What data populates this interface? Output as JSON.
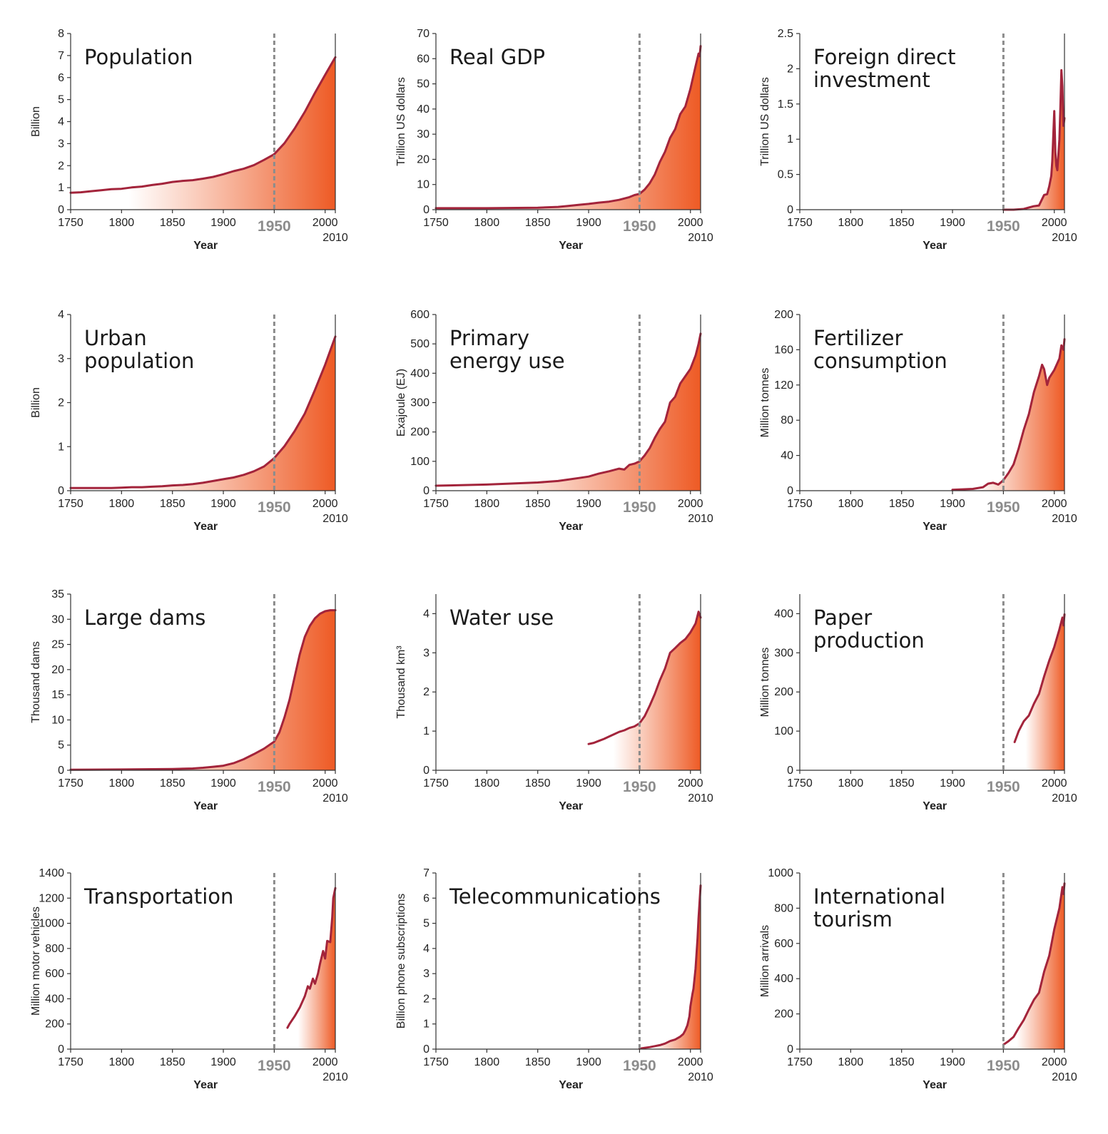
{
  "figure": {
    "x_axis": {
      "title": "Year",
      "ticks": [
        "1750",
        "1800",
        "1850",
        "1900",
        "1950",
        "2000"
      ],
      "end_label": "2010",
      "highlight_year_label": "1950"
    },
    "colors": {
      "line": "#a3243b",
      "fill_strong": "#ee5a24",
      "fill_light": "#ffffff",
      "reference_line": "#8c8c8c",
      "axis": "#333333"
    }
  },
  "chart_data": [
    {
      "type": "area",
      "title_lines": [
        "Population"
      ],
      "ylabel": "Billion",
      "ylim": [
        0,
        8
      ],
      "yticks": [
        "0",
        "1",
        "2",
        "3",
        "4",
        "5",
        "6",
        "7",
        "8"
      ],
      "xlim": [
        1750,
        2010
      ],
      "reference_x": 1950,
      "x": [
        1750,
        1760,
        1770,
        1780,
        1790,
        1800,
        1810,
        1820,
        1830,
        1840,
        1850,
        1860,
        1870,
        1880,
        1890,
        1900,
        1910,
        1920,
        1930,
        1940,
        1950,
        1960,
        1970,
        1980,
        1990,
        2000,
        2010
      ],
      "y": [
        0.77,
        0.79,
        0.84,
        0.88,
        0.93,
        0.95,
        1.01,
        1.05,
        1.12,
        1.18,
        1.26,
        1.31,
        1.34,
        1.41,
        1.49,
        1.61,
        1.75,
        1.86,
        2.02,
        2.26,
        2.52,
        3.02,
        3.68,
        4.44,
        5.31,
        6.12,
        6.92
      ]
    },
    {
      "type": "area",
      "title_lines": [
        "Real GDP"
      ],
      "ylabel": "Trillion US dollars",
      "ylim": [
        0,
        70
      ],
      "yticks": [
        "0",
        "10",
        "20",
        "30",
        "40",
        "50",
        "60",
        "70"
      ],
      "xlim": [
        1750,
        2010
      ],
      "reference_x": 1950,
      "x": [
        1750,
        1800,
        1850,
        1870,
        1880,
        1890,
        1900,
        1910,
        1920,
        1930,
        1940,
        1945,
        1950,
        1955,
        1960,
        1965,
        1970,
        1975,
        1980,
        1985,
        1990,
        1995,
        2000,
        2005,
        2008,
        2009,
        2010
      ],
      "y": [
        0.6,
        0.6,
        0.8,
        1.1,
        1.5,
        1.9,
        2.3,
        2.8,
        3.2,
        3.9,
        5.0,
        5.8,
        6.3,
        8.0,
        10.5,
        14,
        19,
        23,
        28.5,
        32,
        38,
        41,
        48,
        57,
        62,
        61,
        65
      ]
    },
    {
      "type": "area",
      "title_lines": [
        "Foreign direct",
        "investment"
      ],
      "ylabel": "Trillion US dollars",
      "ylim": [
        0,
        2.5
      ],
      "yticks": [
        "0",
        "0.5",
        "1",
        "1.5",
        "2",
        "2.5"
      ],
      "xlim": [
        1750,
        2010
      ],
      "reference_x": 1950,
      "x": [
        1950,
        1960,
        1970,
        1975,
        1980,
        1985,
        1988,
        1990,
        1993,
        1995,
        1997,
        1998,
        2000,
        2001,
        2002,
        2003,
        2005,
        2006,
        2007,
        2008,
        2009,
        2010
      ],
      "y": [
        0.0,
        0.0,
        0.01,
        0.03,
        0.05,
        0.06,
        0.15,
        0.21,
        0.22,
        0.33,
        0.48,
        0.69,
        1.4,
        0.82,
        0.62,
        0.56,
        1.0,
        1.46,
        1.98,
        1.75,
        1.19,
        1.3
      ]
    },
    {
      "type": "area",
      "title_lines": [
        "Urban",
        "population"
      ],
      "ylabel": "Billion",
      "ylim": [
        0,
        4
      ],
      "yticks": [
        "0",
        "1",
        "2",
        "3",
        "4"
      ],
      "xlim": [
        1750,
        2010
      ],
      "reference_x": 1950,
      "x": [
        1750,
        1760,
        1770,
        1780,
        1790,
        1800,
        1810,
        1820,
        1830,
        1840,
        1850,
        1860,
        1870,
        1880,
        1890,
        1900,
        1910,
        1920,
        1930,
        1940,
        1950,
        1960,
        1970,
        1980,
        1990,
        2000,
        2010
      ],
      "y": [
        0.06,
        0.06,
        0.06,
        0.06,
        0.06,
        0.07,
        0.08,
        0.08,
        0.09,
        0.1,
        0.12,
        0.13,
        0.15,
        0.18,
        0.22,
        0.26,
        0.3,
        0.36,
        0.44,
        0.55,
        0.74,
        1.01,
        1.35,
        1.75,
        2.29,
        2.86,
        3.5
      ]
    },
    {
      "type": "area",
      "title_lines": [
        "Primary",
        "energy use"
      ],
      "ylabel": "Exajoule (EJ)",
      "ylim": [
        0,
        600
      ],
      "yticks": [
        "0",
        "100",
        "200",
        "300",
        "400",
        "500",
        "600"
      ],
      "xlim": [
        1750,
        2010
      ],
      "reference_x": 1950,
      "x": [
        1750,
        1800,
        1850,
        1870,
        1880,
        1890,
        1900,
        1910,
        1920,
        1930,
        1935,
        1940,
        1945,
        1950,
        1955,
        1960,
        1965,
        1970,
        1975,
        1980,
        1985,
        1990,
        1995,
        2000,
        2005,
        2008,
        2010
      ],
      "y": [
        17,
        21,
        28,
        33,
        38,
        43,
        48,
        58,
        66,
        75,
        72,
        88,
        92,
        100,
        120,
        145,
        180,
        210,
        235,
        300,
        320,
        365,
        390,
        415,
        460,
        500,
        535
      ]
    },
    {
      "type": "area",
      "title_lines": [
        "Fertilizer",
        "consumption"
      ],
      "ylabel": "Million tonnes",
      "ylim": [
        0,
        200
      ],
      "yticks": [
        "0",
        "40",
        "80",
        "120",
        "160",
        "200"
      ],
      "xlim": [
        1750,
        2010
      ],
      "reference_x": 1950,
      "x": [
        1900,
        1910,
        1920,
        1930,
        1935,
        1940,
        1945,
        1950,
        1955,
        1960,
        1965,
        1970,
        1975,
        1980,
        1985,
        1988,
        1990,
        1993,
        1995,
        2000,
        2005,
        2007,
        2009,
        2010
      ],
      "y": [
        1,
        1.5,
        2,
        4,
        8,
        9,
        7,
        12,
        20,
        30,
        48,
        69,
        87,
        112,
        130,
        143,
        138,
        120,
        128,
        137,
        150,
        165,
        160,
        172
      ]
    },
    {
      "type": "area",
      "title_lines": [
        "Large dams"
      ],
      "ylabel": "Thousand dams",
      "ylim": [
        0,
        35
      ],
      "yticks": [
        "0",
        "5",
        "10",
        "15",
        "20",
        "25",
        "30",
        "35"
      ],
      "xlim": [
        1750,
        2010
      ],
      "reference_x": 1950,
      "x": [
        1750,
        1800,
        1850,
        1870,
        1880,
        1890,
        1900,
        1910,
        1920,
        1930,
        1940,
        1945,
        1950,
        1955,
        1960,
        1965,
        1970,
        1975,
        1980,
        1985,
        1990,
        1995,
        2000,
        2005,
        2010
      ],
      "y": [
        0.1,
        0.15,
        0.25,
        0.35,
        0.5,
        0.7,
        0.9,
        1.4,
        2.2,
        3.2,
        4.3,
        5.0,
        5.7,
        7.5,
        10.5,
        14,
        18.5,
        23,
        26.5,
        28.7,
        30.2,
        31.1,
        31.6,
        31.8,
        31.8
      ]
    },
    {
      "type": "area",
      "title_lines": [
        "Water use"
      ],
      "ylabel": "Thousand km³",
      "ylim": [
        0,
        4.5
      ],
      "yticks": [
        "0",
        "1",
        "2",
        "3",
        "4"
      ],
      "xlim": [
        1750,
        2010
      ],
      "reference_x": 1950,
      "x": [
        1900,
        1905,
        1910,
        1915,
        1920,
        1925,
        1930,
        1935,
        1940,
        1945,
        1950,
        1955,
        1960,
        1965,
        1970,
        1975,
        1980,
        1985,
        1990,
        1995,
        2000,
        2005,
        2008,
        2010
      ],
      "y": [
        0.67,
        0.7,
        0.75,
        0.8,
        0.86,
        0.92,
        0.98,
        1.02,
        1.08,
        1.12,
        1.2,
        1.38,
        1.65,
        1.95,
        2.3,
        2.6,
        3.0,
        3.12,
        3.25,
        3.35,
        3.52,
        3.75,
        4.05,
        3.9
      ]
    },
    {
      "type": "area",
      "title_lines": [
        "Paper",
        "production"
      ],
      "ylabel": "Million tonnes",
      "ylim": [
        0,
        450
      ],
      "yticks": [
        "0",
        "100",
        "200",
        "300",
        "400"
      ],
      "xlim": [
        1750,
        2010
      ],
      "reference_x": 1950,
      "x": [
        1961,
        1965,
        1970,
        1975,
        1980,
        1985,
        1990,
        1995,
        2000,
        2005,
        2008,
        2009,
        2010
      ],
      "y": [
        72,
        100,
        125,
        140,
        170,
        195,
        240,
        280,
        315,
        360,
        390,
        370,
        398
      ]
    },
    {
      "type": "area",
      "title_lines": [
        "Transportation"
      ],
      "ylabel": "Million motor vehicles",
      "ylim": [
        0,
        1400
      ],
      "yticks": [
        "0",
        "200",
        "400",
        "600",
        "800",
        "1000",
        "1200",
        "1400"
      ],
      "xlim": [
        1750,
        2010
      ],
      "reference_x": 1950,
      "x": [
        1963,
        1965,
        1970,
        1975,
        1980,
        1983,
        1985,
        1988,
        1990,
        1993,
        1995,
        1998,
        2000,
        2002,
        2005,
        2007,
        2008,
        2010
      ],
      "y": [
        170,
        200,
        260,
        330,
        420,
        500,
        480,
        560,
        520,
        600,
        680,
        780,
        720,
        860,
        850,
        1050,
        1200,
        1280
      ]
    },
    {
      "type": "area",
      "title_lines": [
        "Telecommunications"
      ],
      "ylabel": "Billion phone subscriptions",
      "ylim": [
        0,
        7
      ],
      "yticks": [
        "0",
        "1",
        "2",
        "3",
        "4",
        "5",
        "6",
        "7"
      ],
      "xlim": [
        1750,
        2010
      ],
      "reference_x": 1950,
      "x": [
        1950,
        1955,
        1960,
        1965,
        1970,
        1975,
        1980,
        1985,
        1990,
        1993,
        1995,
        1997,
        1999,
        2000,
        2002,
        2003,
        2005,
        2007,
        2008,
        2010
      ],
      "y": [
        0.02,
        0.05,
        0.08,
        0.12,
        0.16,
        0.22,
        0.32,
        0.38,
        0.5,
        0.6,
        0.75,
        0.95,
        1.3,
        1.7,
        2.2,
        2.4,
        3.2,
        4.4,
        5.2,
        6.5
      ]
    },
    {
      "type": "area",
      "title_lines": [
        "International",
        "tourism"
      ],
      "ylabel": "Million arrivals",
      "ylim": [
        0,
        1000
      ],
      "yticks": [
        "0",
        "200",
        "400",
        "600",
        "800",
        "1000"
      ],
      "xlim": [
        1750,
        2010
      ],
      "reference_x": 1950,
      "x": [
        1950,
        1955,
        1960,
        1965,
        1970,
        1975,
        1980,
        1985,
        1990,
        1995,
        2000,
        2005,
        2008,
        2009,
        2010
      ],
      "y": [
        25,
        45,
        70,
        120,
        165,
        225,
        280,
        320,
        440,
        530,
        680,
        800,
        920,
        880,
        940
      ]
    }
  ]
}
